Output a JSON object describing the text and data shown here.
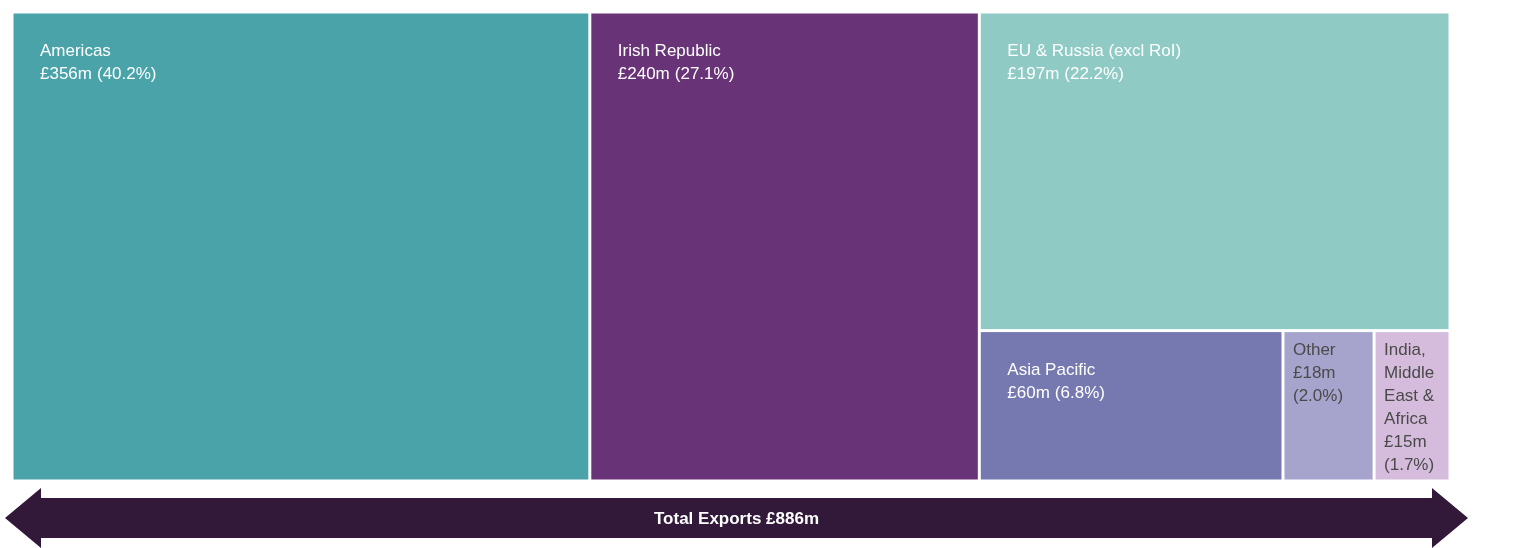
{
  "chart_data": {
    "type": "other",
    "categories": [
      "Americas",
      "Irish Republic",
      "EU & Russia (excl RoI)",
      "Asia Pacific",
      "Other",
      "India, Middle East & Africa"
    ],
    "values": [
      356,
      240,
      197,
      60,
      18,
      15
    ],
    "value_labels": [
      "£356m",
      "£240m",
      "£197m",
      "£60m",
      "£18m",
      "£15m"
    ],
    "colors": [
      "#4aa3a8",
      "#693477",
      "#8fcac5",
      "#7679b0",
      "#a6a3cc",
      "#d5bcdc"
    ],
    "annotations": [
      "Total Exports £886m",
      {
        "text": "(40.2%)",
        "x": "Americas"
      },
      {
        "text": "(27.1%)",
        "x": "Irish Republic"
      },
      {
        "text": "(22.2%)",
        "x": "EU & Russia (excl RoI)"
      },
      {
        "text": "(6.8%)",
        "x": "Asia Pacific"
      },
      {
        "text": "(2.0%)",
        "x": "Other"
      },
      {
        "text": "(1.7%)",
        "x": "India, Middle East & Africa"
      }
    ]
  }
}
